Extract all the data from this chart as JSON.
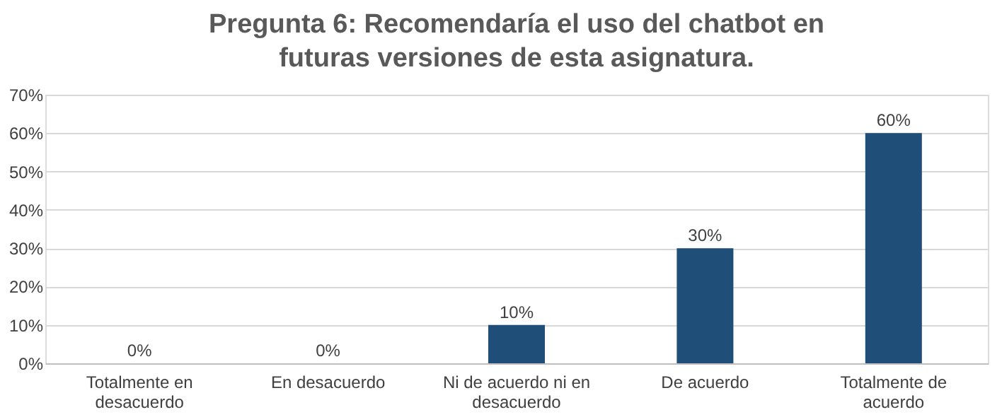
{
  "chart_data": {
    "type": "bar",
    "title": "Pregunta 6: Recomendaría el uso del chatbot en futuras versiones de esta asignatura.",
    "categories": [
      "Totalmente en desacuerdo",
      "En desacuerdo",
      "Ni de acuerdo ni en desacuerdo",
      "De acuerdo",
      "Totalmente de acuerdo"
    ],
    "values": [
      0,
      0,
      10,
      30,
      60
    ],
    "color": "#1f4e79",
    "value_labels": [
      "0%",
      "0%",
      "10%",
      "30%",
      "60%"
    ],
    "ylim": [
      0,
      70
    ],
    "yticks": [
      {
        "value": 0,
        "label": "0%"
      },
      {
        "value": 10,
        "label": "10%"
      },
      {
        "value": 20,
        "label": "20%"
      },
      {
        "value": 30,
        "label": "30%"
      },
      {
        "value": 40,
        "label": "40%"
      },
      {
        "value": 50,
        "label": "50%"
      },
      {
        "value": 60,
        "label": "60%"
      },
      {
        "value": 70,
        "label": "70%"
      }
    ],
    "grid": "y"
  }
}
